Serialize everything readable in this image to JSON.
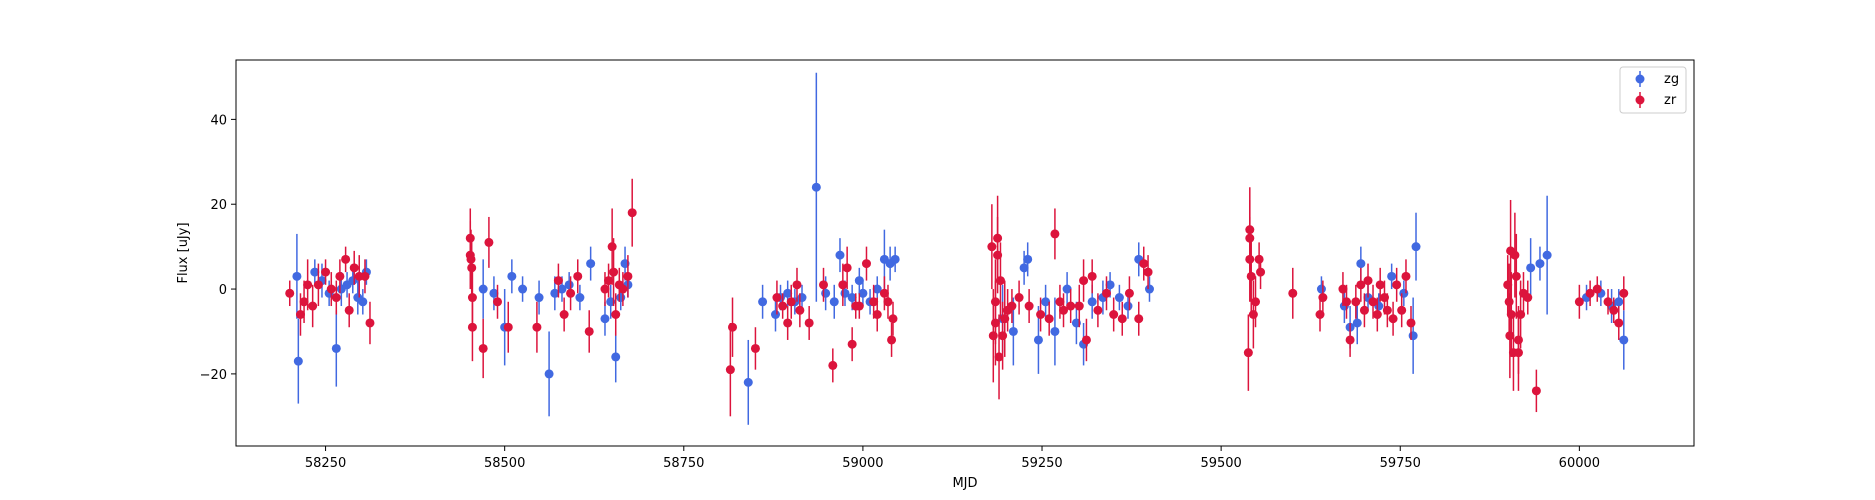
{
  "chart_data": {
    "type": "scatter",
    "xlabel": "MJD",
    "ylabel": "Flux [uJy]",
    "xlim": [
      58125,
      60160
    ],
    "ylim": [
      -37,
      54
    ],
    "xticks": [
      58250,
      58500,
      58750,
      59000,
      59250,
      59500,
      59750,
      60000
    ],
    "yticks": [
      -20,
      0,
      20,
      40
    ],
    "legend": {
      "placement": "top-right",
      "entries": [
        "zg",
        "zr"
      ]
    },
    "series": [
      {
        "name": "zg",
        "color": "#4169e1",
        "points": [
          [
            58210,
            3,
            10
          ],
          [
            58212,
            -17,
            10
          ],
          [
            58235,
            4,
            3
          ],
          [
            58245,
            2,
            4
          ],
          [
            58255,
            -1,
            3
          ],
          [
            58265,
            -14,
            9
          ],
          [
            58272,
            0,
            4
          ],
          [
            58280,
            1,
            3
          ],
          [
            58288,
            2,
            3
          ],
          [
            58295,
            -2,
            4
          ],
          [
            58302,
            -3,
            3
          ],
          [
            58307,
            4,
            3
          ],
          [
            58470,
            0,
            7
          ],
          [
            58485,
            -1,
            4
          ],
          [
            58500,
            -9,
            9
          ],
          [
            58510,
            3,
            4
          ],
          [
            58525,
            0,
            3
          ],
          [
            58548,
            -2,
            4
          ],
          [
            58562,
            -20,
            10
          ],
          [
            58570,
            -1,
            4
          ],
          [
            58580,
            0,
            3
          ],
          [
            58590,
            1,
            3
          ],
          [
            58605,
            -2,
            3
          ],
          [
            58620,
            6,
            4
          ],
          [
            58640,
            -7,
            4
          ],
          [
            58648,
            -3,
            4
          ],
          [
            58655,
            -16,
            6
          ],
          [
            58662,
            -2,
            3
          ],
          [
            58668,
            6,
            4
          ],
          [
            58672,
            1,
            3
          ],
          [
            58840,
            -22,
            10
          ],
          [
            58860,
            -3,
            4
          ],
          [
            58878,
            -6,
            4
          ],
          [
            58885,
            -2,
            3
          ],
          [
            58895,
            -1,
            3
          ],
          [
            58905,
            -3,
            3
          ],
          [
            58915,
            -2,
            3
          ],
          [
            58935,
            24,
            27
          ],
          [
            58948,
            -1,
            4
          ],
          [
            58960,
            -3,
            4
          ],
          [
            58968,
            8,
            4
          ],
          [
            58975,
            -1,
            3
          ],
          [
            58985,
            -2,
            3
          ],
          [
            58995,
            2,
            3
          ],
          [
            59000,
            -1,
            3
          ],
          [
            59010,
            -3,
            3
          ],
          [
            59020,
            0,
            3
          ],
          [
            59030,
            7,
            7
          ],
          [
            59038,
            6,
            4
          ],
          [
            59045,
            7,
            3
          ],
          [
            59195,
            -7,
            8
          ],
          [
            59210,
            -10,
            8
          ],
          [
            59225,
            5,
            4
          ],
          [
            59230,
            7,
            4
          ],
          [
            59245,
            -12,
            8
          ],
          [
            59255,
            -3,
            4
          ],
          [
            59268,
            -10,
            8
          ],
          [
            59285,
            0,
            4
          ],
          [
            59298,
            -8,
            5
          ],
          [
            59308,
            -13,
            5
          ],
          [
            59320,
            -3,
            4
          ],
          [
            59335,
            -2,
            4
          ],
          [
            59345,
            1,
            3
          ],
          [
            59358,
            -2,
            3
          ],
          [
            59370,
            -4,
            3
          ],
          [
            59385,
            7,
            4
          ],
          [
            59400,
            0,
            3
          ],
          [
            59640,
            0,
            3
          ],
          [
            59672,
            -4,
            4
          ],
          [
            59680,
            -9,
            5
          ],
          [
            59690,
            -8,
            5
          ],
          [
            59695,
            6,
            4
          ],
          [
            59705,
            -2,
            3
          ],
          [
            59720,
            -4,
            3
          ],
          [
            59738,
            3,
            3
          ],
          [
            59755,
            -1,
            3
          ],
          [
            59768,
            -11,
            9
          ],
          [
            59772,
            10,
            8
          ],
          [
            59932,
            5,
            7
          ],
          [
            59945,
            6,
            4
          ],
          [
            59955,
            8,
            14
          ],
          [
            60010,
            -2,
            3
          ],
          [
            60030,
            -1,
            3
          ],
          [
            60045,
            -4,
            4
          ],
          [
            60055,
            -3,
            3
          ],
          [
            60062,
            -12,
            7
          ]
        ]
      },
      {
        "name": "zr",
        "color": "#dc143c",
        "points": [
          [
            58200,
            -1,
            3
          ],
          [
            58215,
            -6,
            5
          ],
          [
            58220,
            -3,
            5
          ],
          [
            58225,
            1,
            6
          ],
          [
            58232,
            -4,
            5
          ],
          [
            58240,
            1,
            5
          ],
          [
            58250,
            4,
            3
          ],
          [
            58258,
            0,
            4
          ],
          [
            58265,
            -2,
            4
          ],
          [
            58270,
            3,
            4
          ],
          [
            58278,
            7,
            3
          ],
          [
            58283,
            -5,
            4
          ],
          [
            58290,
            5,
            4
          ],
          [
            58297,
            3,
            5
          ],
          [
            58305,
            3,
            4
          ],
          [
            58312,
            -8,
            5
          ],
          [
            58452,
            12,
            7
          ],
          [
            58452,
            8,
            8
          ],
          [
            58453,
            7,
            7
          ],
          [
            58454,
            5,
            7
          ],
          [
            58455,
            -2,
            7
          ],
          [
            58455,
            -9,
            8
          ],
          [
            58470,
            -14,
            7
          ],
          [
            58478,
            11,
            6
          ],
          [
            58490,
            -3,
            4
          ],
          [
            58505,
            -9,
            6
          ],
          [
            58545,
            -9,
            6
          ],
          [
            58575,
            2,
            4
          ],
          [
            58583,
            -6,
            4
          ],
          [
            58592,
            -1,
            4
          ],
          [
            58602,
            3,
            4
          ],
          [
            58618,
            -10,
            5
          ],
          [
            58640,
            0,
            4
          ],
          [
            58645,
            2,
            4
          ],
          [
            58650,
            10,
            9
          ],
          [
            58652,
            4,
            8
          ],
          [
            58655,
            -6,
            5
          ],
          [
            58660,
            1,
            4
          ],
          [
            58665,
            0,
            4
          ],
          [
            58672,
            3,
            5
          ],
          [
            58678,
            18,
            8
          ],
          [
            58815,
            -19,
            11
          ],
          [
            58818,
            -9,
            7
          ],
          [
            58850,
            -14,
            5
          ],
          [
            58880,
            -2,
            4
          ],
          [
            58888,
            -4,
            3
          ],
          [
            58895,
            -8,
            4
          ],
          [
            58900,
            -3,
            4
          ],
          [
            58908,
            1,
            4
          ],
          [
            58912,
            -5,
            4
          ],
          [
            58925,
            -8,
            4
          ],
          [
            58945,
            1,
            4
          ],
          [
            58958,
            -18,
            4
          ],
          [
            58972,
            1,
            5
          ],
          [
            58978,
            5,
            5
          ],
          [
            58985,
            -13,
            4
          ],
          [
            58990,
            -4,
            3
          ],
          [
            58995,
            -4,
            3
          ],
          [
            59005,
            6,
            4
          ],
          [
            59015,
            -3,
            4
          ],
          [
            59020,
            -6,
            4
          ],
          [
            59030,
            -1,
            4
          ],
          [
            59035,
            -3,
            4
          ],
          [
            59040,
            -12,
            4
          ],
          [
            59042,
            -7,
            4
          ],
          [
            59180,
            10,
            10
          ],
          [
            59182,
            -11,
            11
          ],
          [
            59185,
            -8,
            10
          ],
          [
            59185,
            -3,
            10
          ],
          [
            59188,
            12,
            10
          ],
          [
            59188,
            8,
            9
          ],
          [
            59190,
            -16,
            10
          ],
          [
            59192,
            2,
            9
          ],
          [
            59195,
            -11,
            8
          ],
          [
            59198,
            -7,
            9
          ],
          [
            59202,
            -5,
            5
          ],
          [
            59208,
            -4,
            4
          ],
          [
            59218,
            -2,
            4
          ],
          [
            59232,
            -4,
            4
          ],
          [
            59248,
            -6,
            4
          ],
          [
            59260,
            -7,
            4
          ],
          [
            59268,
            13,
            6
          ],
          [
            59275,
            -3,
            4
          ],
          [
            59280,
            -5,
            4
          ],
          [
            59290,
            -4,
            4
          ],
          [
            59302,
            -4,
            5
          ],
          [
            59308,
            2,
            5
          ],
          [
            59312,
            -12,
            5
          ],
          [
            59320,
            3,
            4
          ],
          [
            59328,
            -5,
            4
          ],
          [
            59340,
            -1,
            4
          ],
          [
            59350,
            -6,
            4
          ],
          [
            59362,
            -7,
            4
          ],
          [
            59372,
            -1,
            4
          ],
          [
            59385,
            -7,
            4
          ],
          [
            59392,
            6,
            4
          ],
          [
            59398,
            4,
            4
          ],
          [
            59538,
            -15,
            9
          ],
          [
            59540,
            14,
            10
          ],
          [
            59540,
            7,
            10
          ],
          [
            59540,
            12,
            9
          ],
          [
            59542,
            3,
            9
          ],
          [
            59545,
            -6,
            8
          ],
          [
            59548,
            -3,
            6
          ],
          [
            59553,
            7,
            4
          ],
          [
            59555,
            4,
            4
          ],
          [
            59600,
            -1,
            6
          ],
          [
            59638,
            -6,
            4
          ],
          [
            59642,
            -2,
            4
          ],
          [
            59670,
            0,
            4
          ],
          [
            59675,
            -3,
            4
          ],
          [
            59680,
            -12,
            4
          ],
          [
            59688,
            -3,
            4
          ],
          [
            59695,
            1,
            4
          ],
          [
            59700,
            -5,
            4
          ],
          [
            59705,
            2,
            4
          ],
          [
            59712,
            -3,
            4
          ],
          [
            59718,
            -6,
            4
          ],
          [
            59722,
            1,
            4
          ],
          [
            59728,
            -2,
            4
          ],
          [
            59732,
            -5,
            4
          ],
          [
            59740,
            -7,
            4
          ],
          [
            59745,
            1,
            4
          ],
          [
            59752,
            -5,
            4
          ],
          [
            59758,
            3,
            4
          ],
          [
            59765,
            -8,
            4
          ],
          [
            59900,
            1,
            7
          ],
          [
            59902,
            -3,
            9
          ],
          [
            59903,
            -11,
            10
          ],
          [
            59904,
            9,
            12
          ],
          [
            59905,
            -6,
            10
          ],
          [
            59908,
            -15,
            9
          ],
          [
            59910,
            8,
            10
          ],
          [
            59912,
            3,
            10
          ],
          [
            59915,
            -12,
            8
          ],
          [
            59915,
            -15,
            9
          ],
          [
            59918,
            -6,
            8
          ],
          [
            59922,
            -1,
            5
          ],
          [
            59928,
            -2,
            4
          ],
          [
            59940,
            -24,
            5
          ],
          [
            60000,
            -3,
            4
          ],
          [
            60015,
            -1,
            3
          ],
          [
            60025,
            0,
            3
          ],
          [
            60040,
            -3,
            3
          ],
          [
            60048,
            -5,
            3
          ],
          [
            60055,
            -8,
            4
          ],
          [
            60062,
            -1,
            4
          ]
        ]
      }
    ]
  }
}
